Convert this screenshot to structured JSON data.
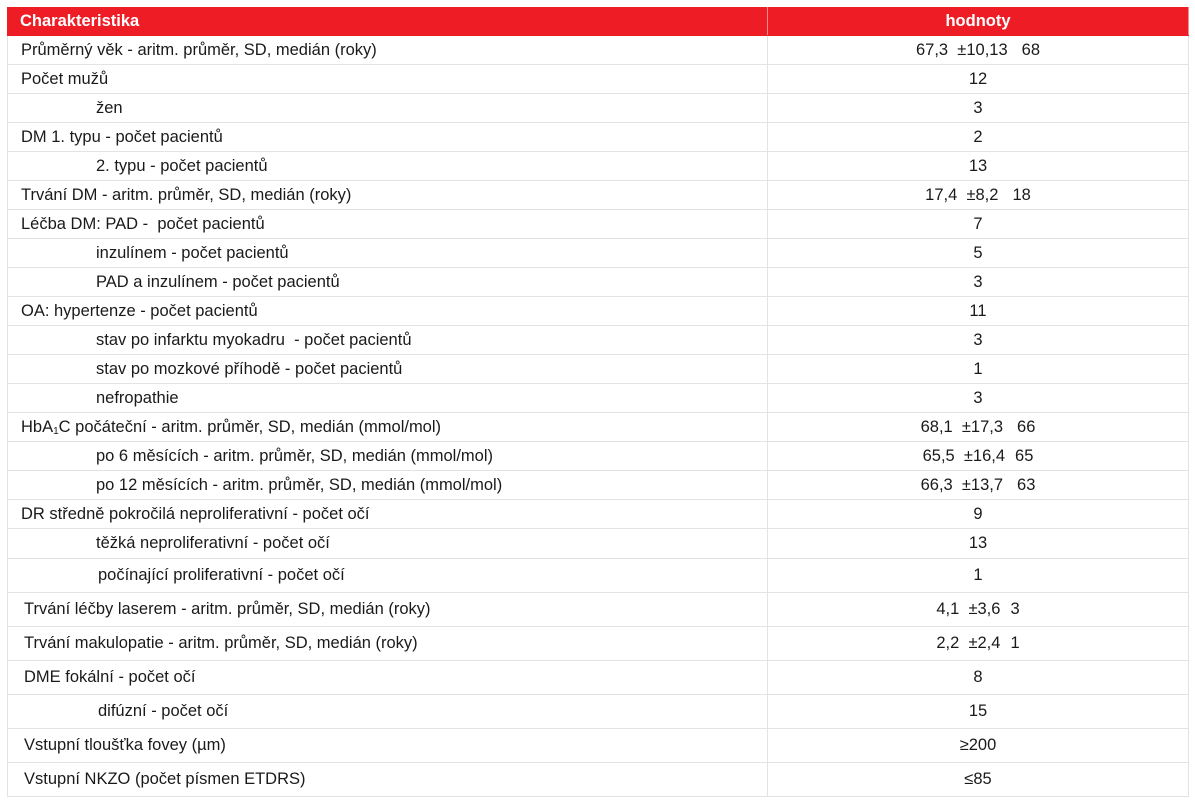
{
  "header": {
    "col1": "Charakteristika",
    "col2": "hodnoty"
  },
  "rows": [
    {
      "label": "Průměrný věk - aritm. průměr, SD, medián (roky)",
      "value": "67,3  ±10,13",
      "median": "68",
      "indent": false
    },
    {
      "label": "Počet mužů",
      "value": "12",
      "median": "",
      "indent": false
    },
    {
      "label": "žen",
      "value": "3",
      "median": "",
      "indent": true
    },
    {
      "label": "DM 1. typu - počet pacientů",
      "value": "2",
      "median": "",
      "indent": false
    },
    {
      "label": "2. typu - počet pacientů",
      "value": "13",
      "median": "",
      "indent": true
    },
    {
      "label": "Trvání DM - aritm. průměr, SD, medián (roky)",
      "value": "17,4  ±8,2",
      "median": "18",
      "indent": false
    },
    {
      "label": "Léčba DM: PAD -  počet pacientů",
      "value": "7",
      "median": "",
      "indent": false
    },
    {
      "label": "inzulínem - počet pacientů",
      "value": "5",
      "median": "",
      "indent": true
    },
    {
      "label": "PAD a inzulínem - počet pacientů",
      "value": "3",
      "median": "",
      "indent": true
    },
    {
      "label": "OA: hypertenze - počet pacientů",
      "value": "11",
      "median": "",
      "indent": false
    },
    {
      "label": "stav po infarktu myokadru  - počet pacientů",
      "value": "3",
      "median": "",
      "indent": true
    },
    {
      "label": "stav po mozkové příhodě - počet pacientů",
      "value": "1",
      "median": "",
      "indent": true
    },
    {
      "label": "nefropathie",
      "value": "3",
      "median": "",
      "indent": true
    },
    {
      "label_pre": "HbA",
      "label_sub": "1",
      "label_post": "C počáteční - aritm. průměr, SD, medián (mmol/mol)",
      "value": "68,1  ±17,3",
      "median": "66",
      "indent": false
    },
    {
      "label": "po 6 měsících - aritm. průměr, SD, medián (mmol/mol)",
      "value": "65,5  ±16,4",
      "median": "65",
      "indent": true
    },
    {
      "label": "po 12 měsících - aritm. průměr, SD, medián (mmol/mol)",
      "value": "66,3  ±13,7",
      "median": "63",
      "indent": true
    },
    {
      "label": "DR středně pokročilá neproliferativní - počet očí",
      "value": "9",
      "median": "",
      "indent": false
    },
    {
      "label": "těžká neproliferativní - počet očí",
      "value": "13",
      "median": "",
      "indent": true
    },
    {
      "label": "počínající proliferativní - počet očí",
      "value": "1",
      "median": "",
      "indent": true
    },
    {
      "label": "Trvání léčby laserem - aritm. průměr, SD, medián (roky)",
      "value": "4,1  ±3,6",
      "median": "3",
      "indent": false
    },
    {
      "label": "Trvání makulopatie - aritm. průměr, SD, medián (roky)",
      "value": "2,2  ±2,4",
      "median": "1",
      "indent": false
    },
    {
      "label": "DME fokální - počet očí",
      "value": "8",
      "median": "",
      "indent": false
    },
    {
      "label": "difúzní - počet očí",
      "value": "15",
      "median": "",
      "indent": true
    },
    {
      "label": "Vstupní tloušťka fovey (µm)",
      "value": "≥200",
      "median": "",
      "indent": false
    },
    {
      "label": "Vstupní NKZO (počet písmen ETDRS)",
      "value": "≤85",
      "median": "",
      "indent": false
    }
  ]
}
